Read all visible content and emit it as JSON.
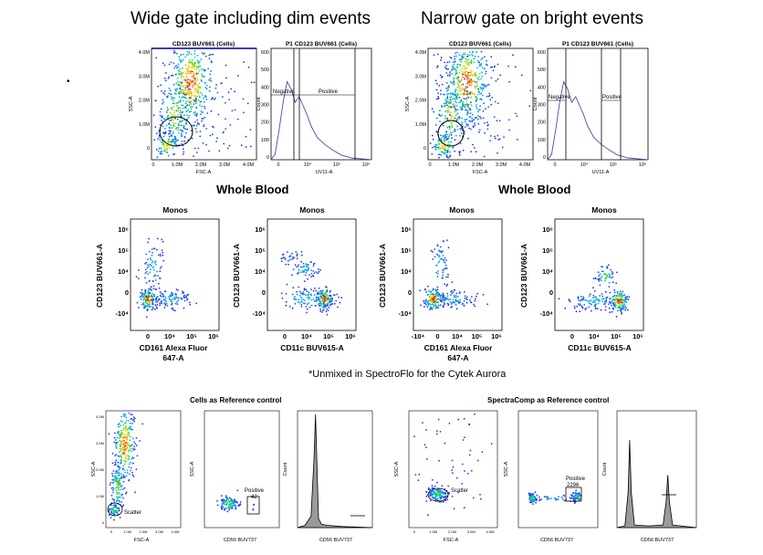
{
  "headings": {
    "wide": "Wide gate including dim events",
    "narrow": "Narrow gate on bright events",
    "whole_blood_left": "Whole Blood",
    "whole_blood_right": "Whole Blood",
    "footnote": "*Unmixed in SpectroFlo for the Cytek Aurora",
    "cells_ref": "Cells as Reference control",
    "spectracomp_ref": "SpectraComp as Reference control"
  },
  "chart_data": [
    {
      "id": "wide-scatter",
      "type": "scatter",
      "title": "CD123 BUV661 (Cells)",
      "xlabel": "FSC-A",
      "ylabel": "SSC-A",
      "x_ticks": [
        "0",
        "1.0M",
        "2.0M",
        "3.0M",
        "4.0M"
      ],
      "y_ticks": [
        "0",
        "1.0M",
        "2.0M",
        "3.0M",
        "4.0M"
      ],
      "xlim": [
        0,
        4.2
      ],
      "ylim": [
        0,
        4.2
      ],
      "gate": "ellipse"
    },
    {
      "id": "wide-histogram",
      "type": "line",
      "title": "P1 CD123 BUV661 (Cells)",
      "xlabel": "UV11-A",
      "ylabel": "Count",
      "x_ticks": [
        "0",
        "10⁴",
        "10⁵",
        "10⁶"
      ],
      "y_ticks": [
        "0",
        "100",
        "200",
        "300",
        "400",
        "500",
        "600"
      ],
      "ylim": [
        0,
        600
      ],
      "gates": [
        "Negative",
        "Positive"
      ],
      "series": [
        {
          "name": "count",
          "x": [
            0,
            4,
            8,
            12,
            16,
            20,
            24,
            28,
            32,
            36,
            40,
            46,
            54,
            62,
            70,
            80,
            90,
            100
          ],
          "y": [
            0,
            30,
            160,
            310,
            420,
            380,
            310,
            340,
            290,
            240,
            180,
            120,
            80,
            50,
            25,
            10,
            5,
            0
          ]
        }
      ]
    },
    {
      "id": "narrow-scatter",
      "type": "scatter",
      "title": "CD123 BUV661 (Cells)",
      "xlabel": "FSC-A",
      "ylabel": "SSC-A",
      "x_ticks": [
        "0",
        "1.0M",
        "2.0M",
        "3.0M",
        "4.0M"
      ],
      "y_ticks": [
        "0",
        "1.0M",
        "2.0M",
        "3.0M",
        "4.0M"
      ],
      "xlim": [
        0,
        4.2
      ],
      "ylim": [
        0,
        4.2
      ],
      "gate": "ellipse"
    },
    {
      "id": "narrow-histogram",
      "type": "line",
      "title": "P1 CD123 BUV661 (Cells)",
      "xlabel": "UV11-A",
      "ylabel": "Count",
      "x_ticks": [
        "0",
        "10⁴",
        "10⁵",
        "10⁶"
      ],
      "y_ticks": [
        "0",
        "100",
        "200",
        "300",
        "400",
        "500",
        "600"
      ],
      "ylim": [
        0,
        600
      ],
      "gates": [
        "Negative",
        "Positive"
      ],
      "series": [
        {
          "name": "count",
          "x": [
            0,
            4,
            8,
            12,
            16,
            20,
            24,
            28,
            32,
            36,
            40,
            46,
            54,
            62,
            70,
            80,
            90,
            100
          ],
          "y": [
            0,
            30,
            160,
            310,
            420,
            380,
            310,
            340,
            290,
            240,
            180,
            120,
            80,
            50,
            25,
            10,
            5,
            0
          ]
        }
      ]
    },
    {
      "id": "monos-1",
      "type": "scatter",
      "title": "Monos",
      "xlabel": "CD161 Alexa Fluor 647-A",
      "ylabel": "CD123 BUV661-A",
      "x_ticks": [
        "0",
        "10⁴",
        "10⁵",
        "10⁶"
      ],
      "y_ticks": [
        "-10⁴",
        "0",
        "10⁴",
        "10⁵",
        "10⁶"
      ]
    },
    {
      "id": "monos-2",
      "type": "scatter",
      "title": "Monos",
      "xlabel": "CD11c BUV615-A",
      "ylabel": "CD123 BUV661-A",
      "x_ticks": [
        "0",
        "10⁴",
        "10⁵",
        "10⁶"
      ],
      "y_ticks": [
        "-10⁴",
        "0",
        "10⁴",
        "10⁵",
        "10⁶"
      ]
    },
    {
      "id": "monos-3",
      "type": "scatter",
      "title": "Monos",
      "xlabel": "CD161 Alexa Fluor 647-A",
      "ylabel": "CD123 BUV661-A",
      "x_ticks": [
        "-10⁴",
        "0",
        "10⁴",
        "10⁵",
        "10⁶"
      ],
      "y_ticks": [
        "-10⁴",
        "0",
        "10⁴",
        "10⁵",
        "10⁶"
      ]
    },
    {
      "id": "monos-4",
      "type": "scatter",
      "title": "Monos",
      "xlabel": "CD11c BUV615-A",
      "ylabel": "CD123 BUV661-A",
      "x_ticks": [
        "0",
        "10⁴",
        "10⁵",
        "10⁶"
      ],
      "y_ticks": [
        "-10⁴",
        "0",
        "10⁴",
        "10⁵",
        "10⁶"
      ]
    },
    {
      "id": "cells-scatter",
      "type": "scatter",
      "title": "",
      "xlabel": "FSC-A",
      "ylabel": "SSC-A",
      "gate_label": "Scatter",
      "x_ticks": [
        "0",
        "1.0M",
        "2.0M",
        "3.0M",
        "4.0M"
      ],
      "y_ticks": [
        "0",
        "1.0M",
        "2.0M",
        "3.0M",
        "4.0M"
      ]
    },
    {
      "id": "cells-cd56",
      "type": "scatter",
      "title": "",
      "xlabel": "CD56 BUV737",
      "ylabel": "SSC-A",
      "gate_label": "Positive",
      "gate_count": "42"
    },
    {
      "id": "cells-hist",
      "type": "line",
      "title": "",
      "xlabel": "CD56 BUV737",
      "ylabel": "Count",
      "series": [
        {
          "name": "count",
          "x": [
            0,
            10,
            18,
            22,
            24,
            26,
            28,
            32,
            40,
            60,
            100
          ],
          "y": [
            0,
            2,
            10,
            60,
            100,
            55,
            8,
            3,
            2,
            1,
            0
          ]
        }
      ]
    },
    {
      "id": "spectra-scatter",
      "type": "scatter",
      "title": "",
      "xlabel": "FSC-A",
      "ylabel": "SSC-A",
      "gate_label": "Scatter",
      "x_ticks": [
        "0",
        "1.0M",
        "2.0M",
        "3.0M",
        "4.0M"
      ]
    },
    {
      "id": "spectra-cd56",
      "type": "scatter",
      "title": "",
      "xlabel": "CD56 BUV737",
      "ylabel": "SSC-A",
      "gate_label": "Positive",
      "gate_count": "2296"
    },
    {
      "id": "spectra-hist",
      "type": "line",
      "title": "",
      "xlabel": "CD56 BUV737",
      "ylabel": "Count",
      "series": [
        {
          "name": "count",
          "x": [
            0,
            10,
            14,
            16,
            18,
            22,
            40,
            58,
            62,
            64,
            66,
            70,
            100
          ],
          "y": [
            0,
            2,
            40,
            100,
            40,
            3,
            2,
            3,
            30,
            60,
            30,
            3,
            0
          ]
        }
      ]
    }
  ]
}
